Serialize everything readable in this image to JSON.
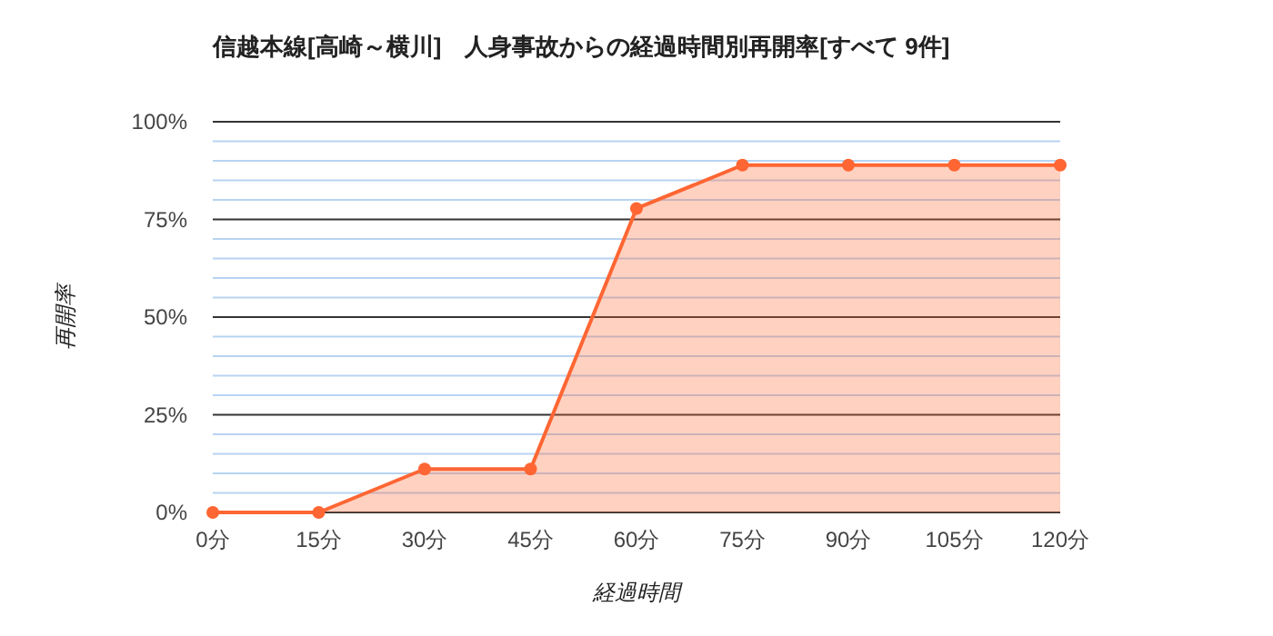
{
  "chart_data": {
    "type": "area",
    "title": "信越本線[高崎～横川]　人身事故からの経過時間別再開率[すべて 9件]",
    "xlabel": "経過時間",
    "ylabel": "再開率",
    "x": [
      0,
      15,
      30,
      45,
      60,
      75,
      90,
      105,
      120
    ],
    "series": [
      {
        "color": "#ff6633",
        "values": [
          0,
          0,
          11.1,
          11.1,
          77.8,
          88.9,
          88.9,
          88.9,
          88.9
        ]
      }
    ],
    "xlim": [
      0,
      120
    ],
    "xticks": [
      {
        "value": 0,
        "label": "0分"
      },
      {
        "value": 15,
        "label": "15分"
      },
      {
        "value": 30,
        "label": "30分"
      },
      {
        "value": 45,
        "label": "45分"
      },
      {
        "value": 60,
        "label": "60分"
      },
      {
        "value": 75,
        "label": "75分"
      },
      {
        "value": 90,
        "label": "90分"
      },
      {
        "value": 105,
        "label": "105分"
      },
      {
        "value": 120,
        "label": "120分"
      }
    ],
    "ylim": [
      0,
      100
    ],
    "yticks": [
      {
        "value": 0,
        "label": "0%"
      },
      {
        "value": 5,
        "label": null
      },
      {
        "value": 10,
        "label": null
      },
      {
        "value": 15,
        "label": null
      },
      {
        "value": 20,
        "label": null
      },
      {
        "value": 25,
        "label": "25%"
      },
      {
        "value": 30,
        "label": null
      },
      {
        "value": 35,
        "label": null
      },
      {
        "value": 40,
        "label": null
      },
      {
        "value": 45,
        "label": null
      },
      {
        "value": 50,
        "label": "50%"
      },
      {
        "value": 55,
        "label": null
      },
      {
        "value": 60,
        "label": null
      },
      {
        "value": 65,
        "label": null
      },
      {
        "value": 70,
        "label": null
      },
      {
        "value": 75,
        "label": "75%"
      },
      {
        "value": 80,
        "label": null
      },
      {
        "value": 85,
        "label": null
      },
      {
        "value": 90,
        "label": null
      },
      {
        "value": 95,
        "label": null
      },
      {
        "value": 100,
        "label": "100%"
      }
    ],
    "grid": true,
    "marker": "circle"
  }
}
